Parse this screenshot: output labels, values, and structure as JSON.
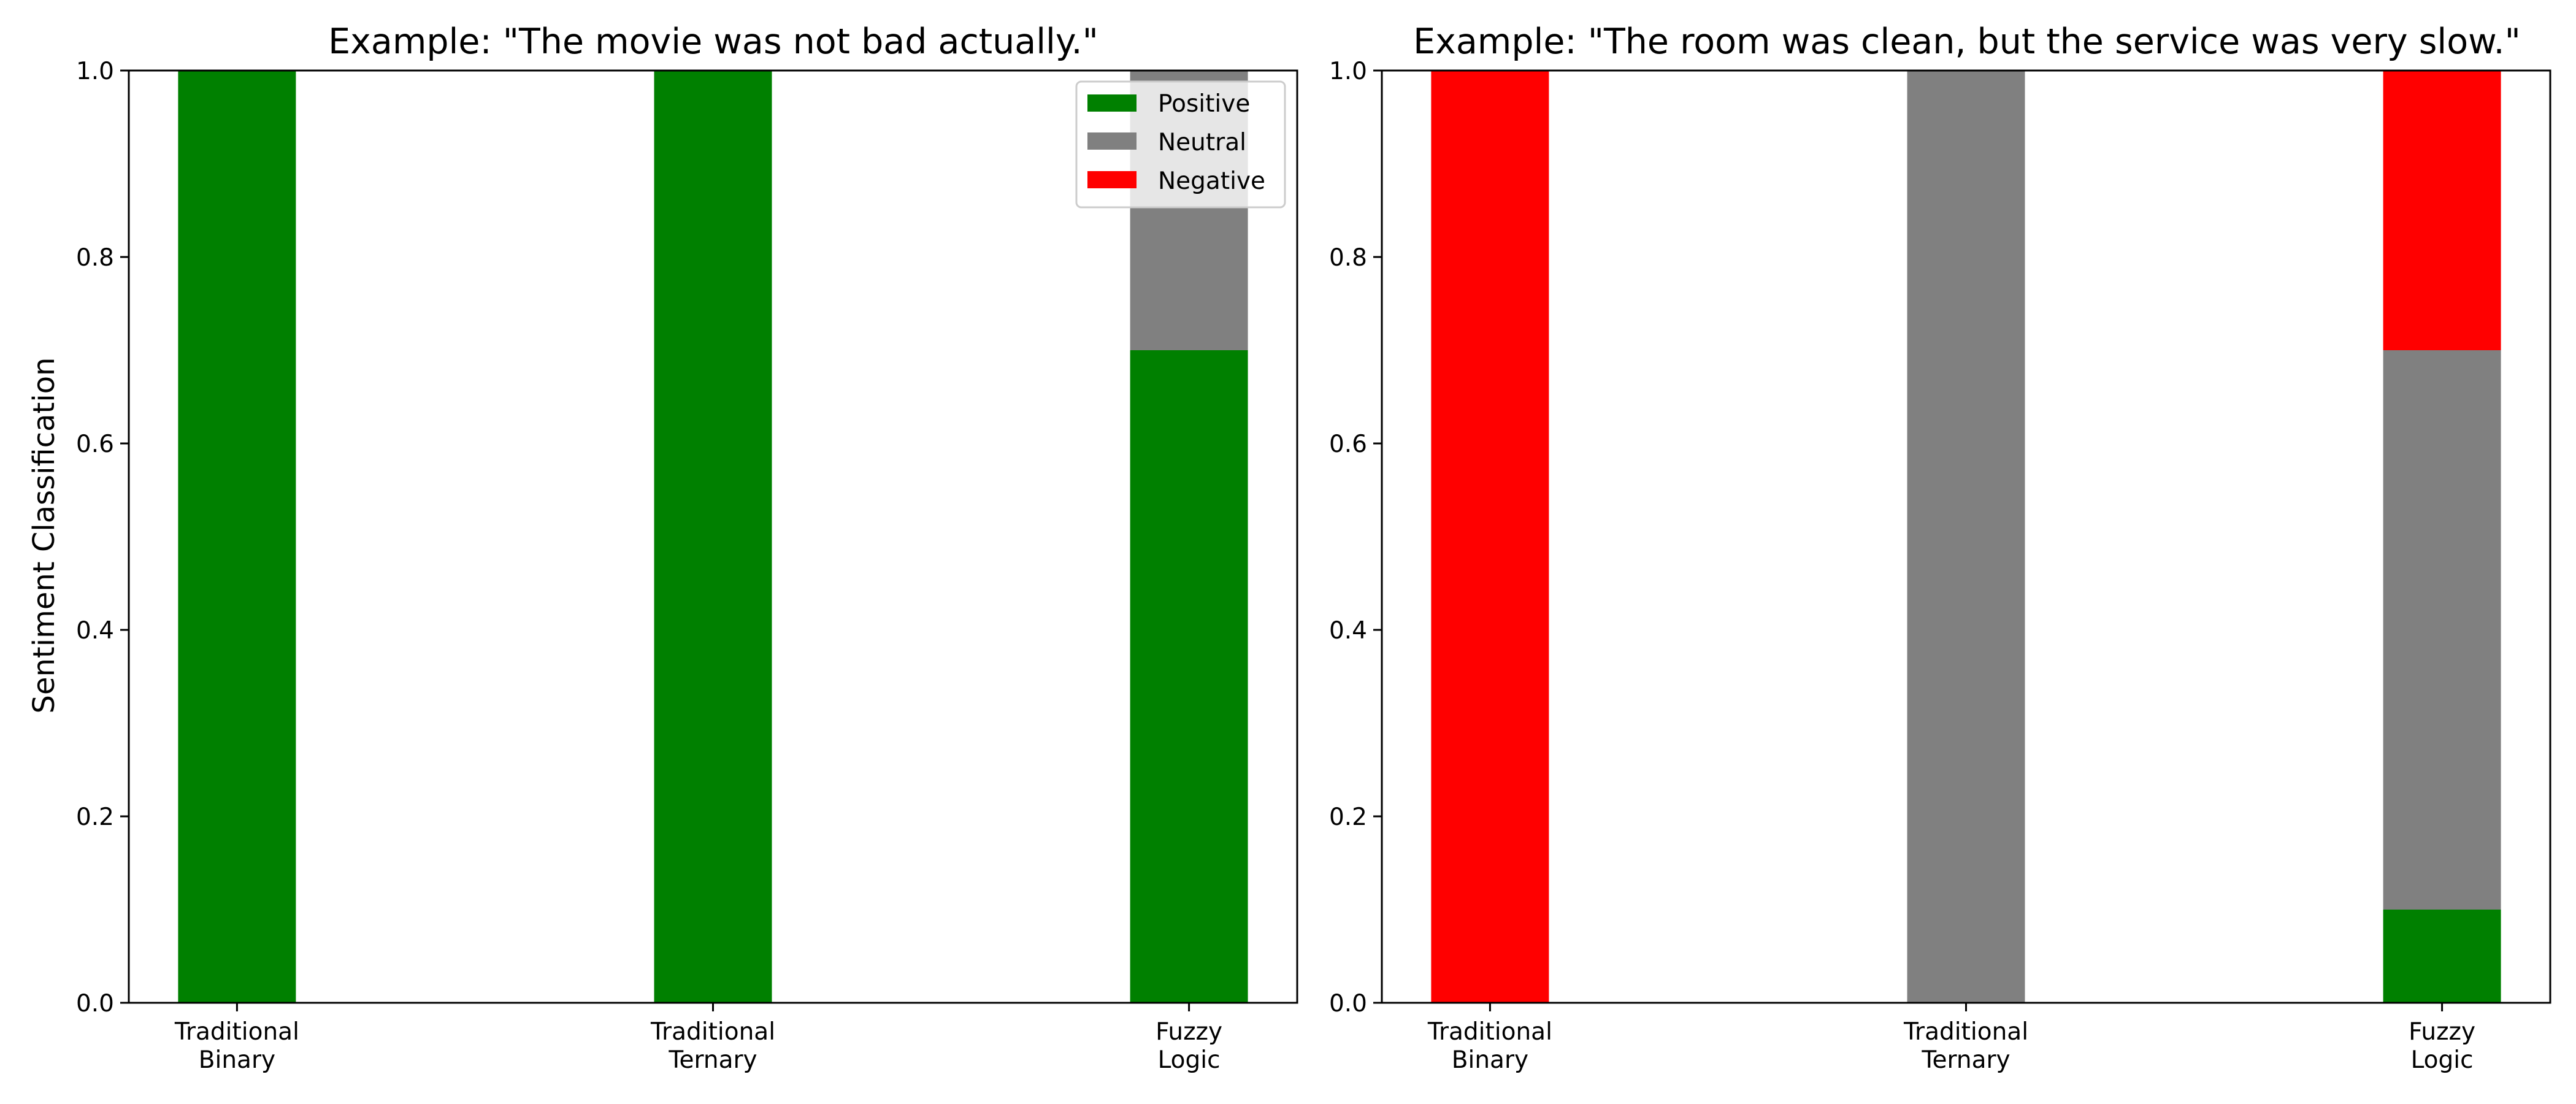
{
  "chart_data": [
    {
      "type": "bar",
      "stacked": true,
      "title": "Example: \"The movie was not bad actually.\"",
      "ylabel": "Sentiment Classification",
      "xlabel": "",
      "ylim": [
        0,
        1
      ],
      "yticks": [
        "0.0",
        "0.2",
        "0.4",
        "0.6",
        "0.8",
        "1.0"
      ],
      "categories": [
        [
          "Traditional",
          "Binary"
        ],
        [
          "Traditional",
          "Ternary"
        ],
        [
          "Fuzzy",
          "Logic"
        ]
      ],
      "series": [
        {
          "name": "Positive",
          "color": "#008000",
          "values": [
            1.0,
            1.0,
            0.7
          ]
        },
        {
          "name": "Neutral",
          "color": "#808080",
          "values": [
            0.0,
            0.0,
            0.3
          ]
        },
        {
          "name": "Negative",
          "color": "#ff0000",
          "values": [
            0.0,
            0.0,
            0.0
          ]
        }
      ],
      "legend": {
        "position": "upper-right",
        "entries": [
          "Positive",
          "Neutral",
          "Negative"
        ]
      }
    },
    {
      "type": "bar",
      "stacked": true,
      "title": "Example: \"The room was clean, but the service was very slow.\"",
      "ylabel": "",
      "xlabel": "",
      "ylim": [
        0,
        1
      ],
      "yticks": [
        "0.0",
        "0.2",
        "0.4",
        "0.6",
        "0.8",
        "1.0"
      ],
      "categories": [
        [
          "Traditional",
          "Binary"
        ],
        [
          "Traditional",
          "Ternary"
        ],
        [
          "Fuzzy",
          "Logic"
        ]
      ],
      "series": [
        {
          "name": "Positive",
          "color": "#008000",
          "values": [
            0.0,
            0.0,
            0.1
          ]
        },
        {
          "name": "Neutral",
          "color": "#808080",
          "values": [
            0.0,
            1.0,
            0.6
          ]
        },
        {
          "name": "Negative",
          "color": "#ff0000",
          "values": [
            1.0,
            0.0,
            0.3
          ]
        }
      ]
    }
  ]
}
